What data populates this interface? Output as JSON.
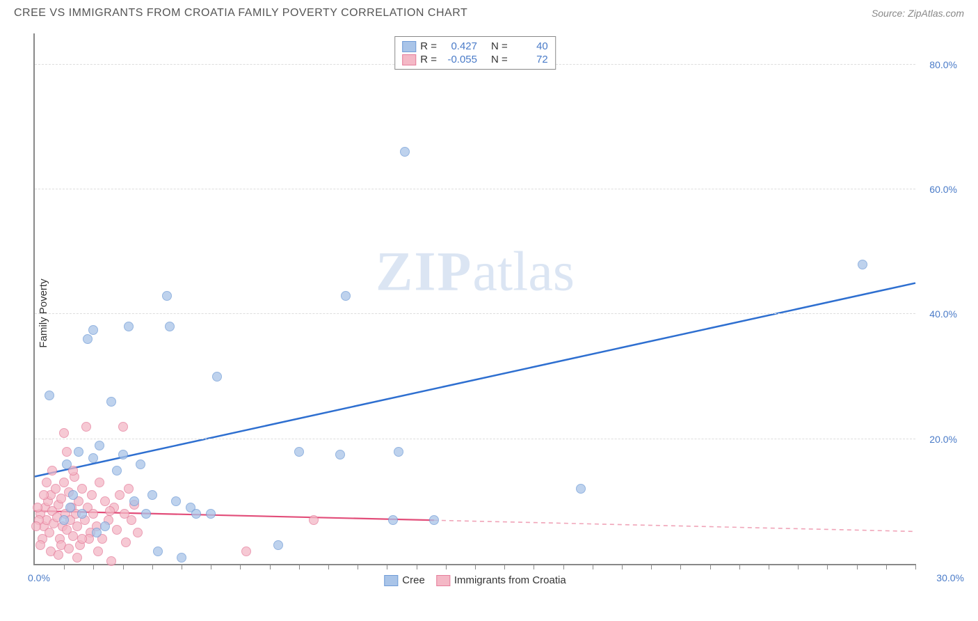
{
  "header": {
    "title": "CREE VS IMMIGRANTS FROM CROATIA FAMILY POVERTY CORRELATION CHART",
    "source": "Source: ZipAtlas.com"
  },
  "watermark": {
    "bold": "ZIP",
    "rest": "atlas"
  },
  "chart": {
    "type": "scatter",
    "y_axis_label": "Family Poverty",
    "xlim": [
      0,
      30
    ],
    "ylim": [
      0,
      85
    ],
    "x_origin_label": "0.0%",
    "x_max_label": "30.0%",
    "y_ticks": [
      {
        "v": 20,
        "label": "20.0%"
      },
      {
        "v": 40,
        "label": "40.0%"
      },
      {
        "v": 60,
        "label": "60.0%"
      },
      {
        "v": 80,
        "label": "80.0%"
      }
    ],
    "x_minor_ticks": [
      1,
      2,
      3,
      4,
      5,
      6,
      7,
      8,
      9,
      10,
      11,
      12,
      13,
      14,
      15,
      16,
      17,
      18,
      19,
      20,
      21,
      22,
      23,
      24,
      25,
      26,
      27,
      28,
      29,
      30
    ],
    "background_color": "#ffffff",
    "grid_color": "#dddddd",
    "axis_color": "#888888",
    "tick_label_color": "#4a7bc8",
    "marker_radius": 7,
    "marker_border_width": 1.2,
    "marker_fill_opacity": 0.35,
    "series": [
      {
        "id": "cree",
        "name": "Cree",
        "color_fill": "#a9c4e8",
        "color_border": "#6f9bd6",
        "R": "0.427",
        "N": "40",
        "trend": {
          "x1": 0,
          "y1": 14,
          "x2": 30,
          "y2": 45,
          "color": "#2e6fd0",
          "width": 2.5,
          "dash": "none"
        },
        "points": [
          [
            0.5,
            27
          ],
          [
            1.0,
            7
          ],
          [
            1.2,
            9
          ],
          [
            1.3,
            11
          ],
          [
            1.5,
            18
          ],
          [
            1.8,
            36
          ],
          [
            2.0,
            17
          ],
          [
            2.2,
            19
          ],
          [
            2.4,
            6
          ],
          [
            2.6,
            26
          ],
          [
            2.8,
            15
          ],
          [
            3.2,
            38
          ],
          [
            3.4,
            10
          ],
          [
            3.6,
            16
          ],
          [
            3.8,
            8
          ],
          [
            4.0,
            11
          ],
          [
            4.2,
            2
          ],
          [
            4.6,
            38
          ],
          [
            5.0,
            1
          ],
          [
            6.2,
            30
          ],
          [
            4.8,
            10
          ],
          [
            5.3,
            9
          ],
          [
            6.0,
            8
          ],
          [
            8.3,
            3
          ],
          [
            9.0,
            18
          ],
          [
            10.4,
            17.5
          ],
          [
            10.6,
            43
          ],
          [
            12.2,
            7
          ],
          [
            12.4,
            18
          ],
          [
            12.6,
            66
          ],
          [
            13.6,
            7
          ],
          [
            18.6,
            12
          ],
          [
            28.2,
            48
          ],
          [
            2.0,
            37.5
          ],
          [
            1.6,
            8
          ],
          [
            1.1,
            16
          ],
          [
            3.0,
            17.5
          ],
          [
            2.1,
            5
          ],
          [
            4.5,
            43
          ],
          [
            5.5,
            8
          ]
        ]
      },
      {
        "id": "croatia",
        "name": "Immigrants from Croatia",
        "color_fill": "#f4b8c6",
        "color_border": "#e57d9b",
        "R": "-0.055",
        "N": "72",
        "trend_solid": {
          "x1": 0,
          "y1": 8.5,
          "x2": 13.6,
          "y2": 7.0,
          "color": "#e24d79",
          "width": 2.2
        },
        "trend_dash": {
          "x1": 13.6,
          "y1": 7.0,
          "x2": 30,
          "y2": 5.2,
          "color": "#f0a4b8",
          "width": 1.6,
          "dash": "6,5"
        },
        "points": [
          [
            0.2,
            8
          ],
          [
            0.3,
            6
          ],
          [
            0.35,
            9
          ],
          [
            0.4,
            7
          ],
          [
            0.45,
            10
          ],
          [
            0.5,
            5
          ],
          [
            0.55,
            11
          ],
          [
            0.6,
            8.5
          ],
          [
            0.65,
            6.5
          ],
          [
            0.7,
            12
          ],
          [
            0.75,
            7.5
          ],
          [
            0.8,
            9.5
          ],
          [
            0.85,
            4
          ],
          [
            0.9,
            10.5
          ],
          [
            0.95,
            6
          ],
          [
            1.0,
            13
          ],
          [
            1.05,
            8
          ],
          [
            1.1,
            5.5
          ],
          [
            1.15,
            11.5
          ],
          [
            1.2,
            7
          ],
          [
            1.25,
            9
          ],
          [
            1.3,
            4.5
          ],
          [
            1.35,
            14
          ],
          [
            1.4,
            8
          ],
          [
            1.45,
            6
          ],
          [
            1.5,
            10
          ],
          [
            1.55,
            3
          ],
          [
            1.6,
            12
          ],
          [
            1.7,
            7
          ],
          [
            1.75,
            22
          ],
          [
            1.8,
            9
          ],
          [
            1.9,
            5
          ],
          [
            1.95,
            11
          ],
          [
            2.0,
            8
          ],
          [
            2.1,
            6
          ],
          [
            2.2,
            13
          ],
          [
            2.3,
            4
          ],
          [
            2.4,
            10
          ],
          [
            2.5,
            7
          ],
          [
            2.6,
            0.5
          ],
          [
            2.7,
            9
          ],
          [
            2.8,
            5.5
          ],
          [
            2.9,
            11
          ],
          [
            3.0,
            22
          ],
          [
            3.05,
            8
          ],
          [
            3.1,
            3.5
          ],
          [
            3.2,
            12
          ],
          [
            3.3,
            7
          ],
          [
            3.4,
            9.5
          ],
          [
            3.5,
            5
          ],
          [
            1.1,
            18
          ],
          [
            0.6,
            15
          ],
          [
            0.4,
            13
          ],
          [
            0.25,
            4
          ],
          [
            0.15,
            7
          ],
          [
            0.1,
            9
          ],
          [
            0.05,
            6
          ],
          [
            1.85,
            4
          ],
          [
            2.15,
            2
          ],
          [
            2.55,
            8.5
          ],
          [
            0.55,
            2
          ],
          [
            0.9,
            3
          ],
          [
            1.15,
            2.5
          ],
          [
            1.45,
            1
          ],
          [
            1.6,
            4
          ],
          [
            7.2,
            2
          ],
          [
            9.5,
            7
          ],
          [
            1.0,
            21
          ],
          [
            0.3,
            11
          ],
          [
            0.8,
            1.5
          ],
          [
            1.3,
            15
          ],
          [
            0.2,
            3
          ]
        ]
      }
    ],
    "legend_top": {
      "layout": "rows",
      "r_label": "R =",
      "n_label": "N ="
    },
    "legend_bottom_order": [
      "cree",
      "croatia"
    ]
  }
}
